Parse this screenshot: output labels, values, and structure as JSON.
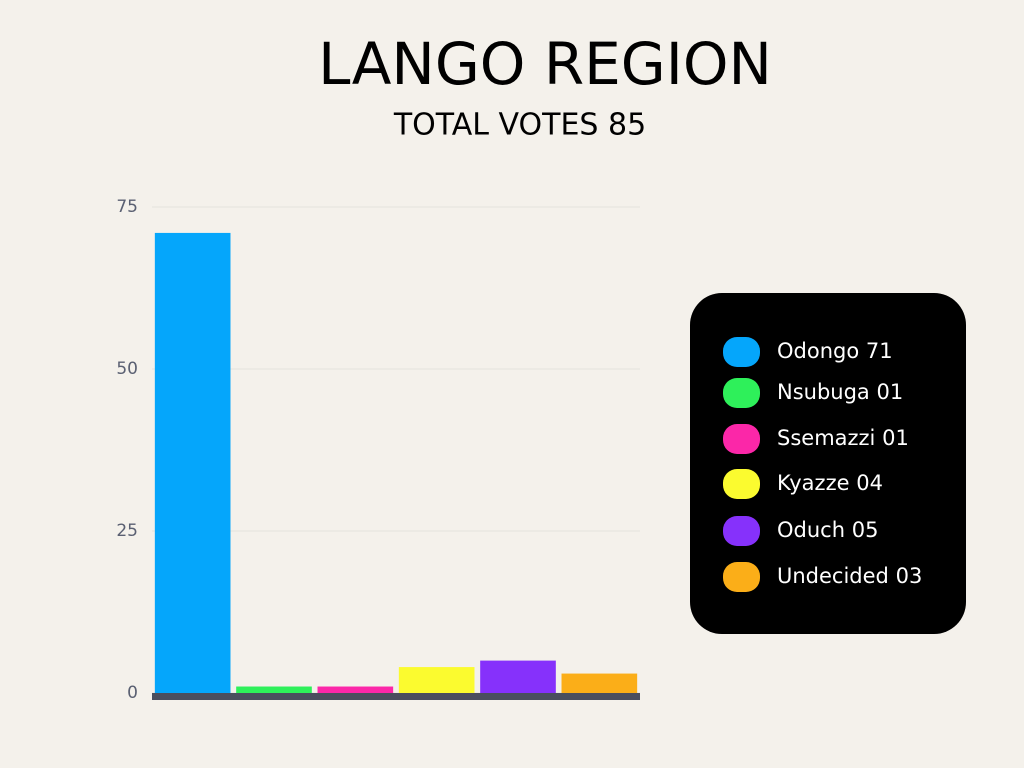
{
  "chart_data": {
    "type": "bar",
    "title": "LANGO REGION",
    "subtitle": "TOTAL VOTES 85",
    "categories": [
      "Odongo",
      "Nsubuga",
      "Ssemazzi",
      "Kyazze",
      "Oduch",
      "Undecided"
    ],
    "values": [
      71,
      1,
      1,
      4,
      5,
      3
    ],
    "value_labels": [
      "71",
      "01",
      "01",
      "04",
      "05",
      "03"
    ],
    "colors": [
      "#05a6fb",
      "#2ef05a",
      "#fb27a8",
      "#fbfb2f",
      "#8631fb",
      "#fbae18"
    ],
    "ylim": [
      0,
      75
    ],
    "yticks": [
      0,
      25,
      50,
      75
    ],
    "grid": true
  }
}
